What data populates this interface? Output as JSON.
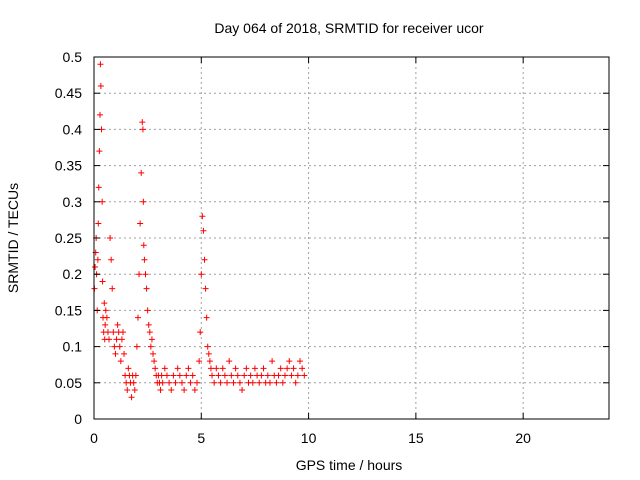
{
  "chart_data": {
    "type": "scatter",
    "title": "Day 064 of 2018, SRMTID for receiver ucor",
    "xlabel": "GPS time / hours",
    "ylabel": "SRMTID / TECUs",
    "xlim": [
      0,
      24
    ],
    "ylim": [
      0,
      0.5
    ],
    "xticks": [
      0,
      5,
      10,
      15,
      20
    ],
    "xtick_labels": [
      "0",
      "5",
      "10",
      "15",
      "20"
    ],
    "yticks": [
      0,
      0.05,
      0.1,
      0.15,
      0.2,
      0.25,
      0.3,
      0.35,
      0.4,
      0.45,
      0.5
    ],
    "ytick_labels": [
      "0",
      "0.05",
      "0.1",
      "0.15",
      "0.2",
      "0.25",
      "0.3",
      "0.35",
      "0.4",
      "0.45",
      "0.5"
    ],
    "grid": true,
    "marker": "+",
    "color": "#ff0000",
    "series": [
      {
        "name": "SRMTID",
        "x": [
          0.02,
          0.05,
          0.08,
          0.1,
          0.12,
          0.15,
          0.18,
          0.2,
          0.22,
          0.25,
          0.28,
          0.3,
          0.32,
          0.35,
          0.38,
          0.4,
          0.42,
          0.45,
          0.48,
          0.5,
          0.52,
          0.55,
          0.6,
          0.65,
          0.7,
          0.75,
          0.8,
          0.85,
          0.9,
          0.95,
          1.0,
          1.05,
          1.1,
          1.15,
          1.2,
          1.25,
          1.3,
          1.35,
          1.4,
          1.45,
          1.5,
          1.55,
          1.6,
          1.65,
          1.7,
          1.75,
          1.8,
          1.85,
          1.9,
          1.95,
          2.0,
          2.05,
          2.1,
          2.15,
          2.2,
          2.25,
          2.28,
          2.3,
          2.32,
          2.35,
          2.4,
          2.45,
          2.5,
          2.55,
          2.6,
          2.65,
          2.7,
          2.75,
          2.8,
          2.85,
          2.9,
          2.95,
          3.0,
          3.05,
          3.1,
          3.15,
          3.2,
          3.3,
          3.4,
          3.5,
          3.6,
          3.7,
          3.8,
          3.9,
          4.0,
          4.1,
          4.2,
          4.3,
          4.4,
          4.5,
          4.6,
          4.7,
          4.8,
          4.9,
          4.95,
          5.0,
          5.05,
          5.1,
          5.15,
          5.2,
          5.25,
          5.3,
          5.35,
          5.4,
          5.45,
          5.5,
          5.6,
          5.7,
          5.8,
          5.9,
          6.0,
          6.1,
          6.2,
          6.3,
          6.4,
          6.5,
          6.6,
          6.7,
          6.8,
          6.9,
          7.0,
          7.1,
          7.2,
          7.3,
          7.4,
          7.5,
          7.6,
          7.7,
          7.8,
          7.9,
          8.0,
          8.1,
          8.2,
          8.3,
          8.4,
          8.5,
          8.6,
          8.7,
          8.8,
          8.9,
          9.0,
          9.1,
          9.2,
          9.3,
          9.4,
          9.5,
          9.6,
          9.7,
          9.8
        ],
        "y": [
          0.18,
          0.21,
          0.23,
          0.25,
          0.2,
          0.15,
          0.22,
          0.27,
          0.32,
          0.37,
          0.42,
          0.49,
          0.46,
          0.4,
          0.3,
          0.19,
          0.14,
          0.12,
          0.16,
          0.11,
          0.13,
          0.15,
          0.14,
          0.12,
          0.11,
          0.25,
          0.22,
          0.18,
          0.12,
          0.1,
          0.09,
          0.11,
          0.13,
          0.12,
          0.1,
          0.08,
          0.11,
          0.12,
          0.09,
          0.06,
          0.05,
          0.04,
          0.07,
          0.06,
          0.05,
          0.03,
          0.06,
          0.05,
          0.04,
          0.06,
          0.1,
          0.14,
          0.2,
          0.27,
          0.34,
          0.41,
          0.4,
          0.3,
          0.24,
          0.22,
          0.2,
          0.18,
          0.15,
          0.13,
          0.12,
          0.1,
          0.11,
          0.09,
          0.08,
          0.07,
          0.06,
          0.05,
          0.06,
          0.05,
          0.04,
          0.06,
          0.05,
          0.07,
          0.06,
          0.05,
          0.04,
          0.06,
          0.05,
          0.07,
          0.06,
          0.05,
          0.04,
          0.06,
          0.07,
          0.05,
          0.06,
          0.04,
          0.05,
          0.08,
          0.12,
          0.2,
          0.28,
          0.26,
          0.22,
          0.18,
          0.14,
          0.1,
          0.09,
          0.08,
          0.07,
          0.06,
          0.05,
          0.07,
          0.06,
          0.05,
          0.07,
          0.06,
          0.05,
          0.08,
          0.06,
          0.05,
          0.07,
          0.06,
          0.05,
          0.04,
          0.06,
          0.07,
          0.05,
          0.06,
          0.05,
          0.07,
          0.06,
          0.05,
          0.06,
          0.07,
          0.05,
          0.06,
          0.05,
          0.08,
          0.06,
          0.05,
          0.06,
          0.07,
          0.05,
          0.06,
          0.07,
          0.08,
          0.06,
          0.07,
          0.05,
          0.06,
          0.08,
          0.07,
          0.06
        ]
      }
    ]
  }
}
